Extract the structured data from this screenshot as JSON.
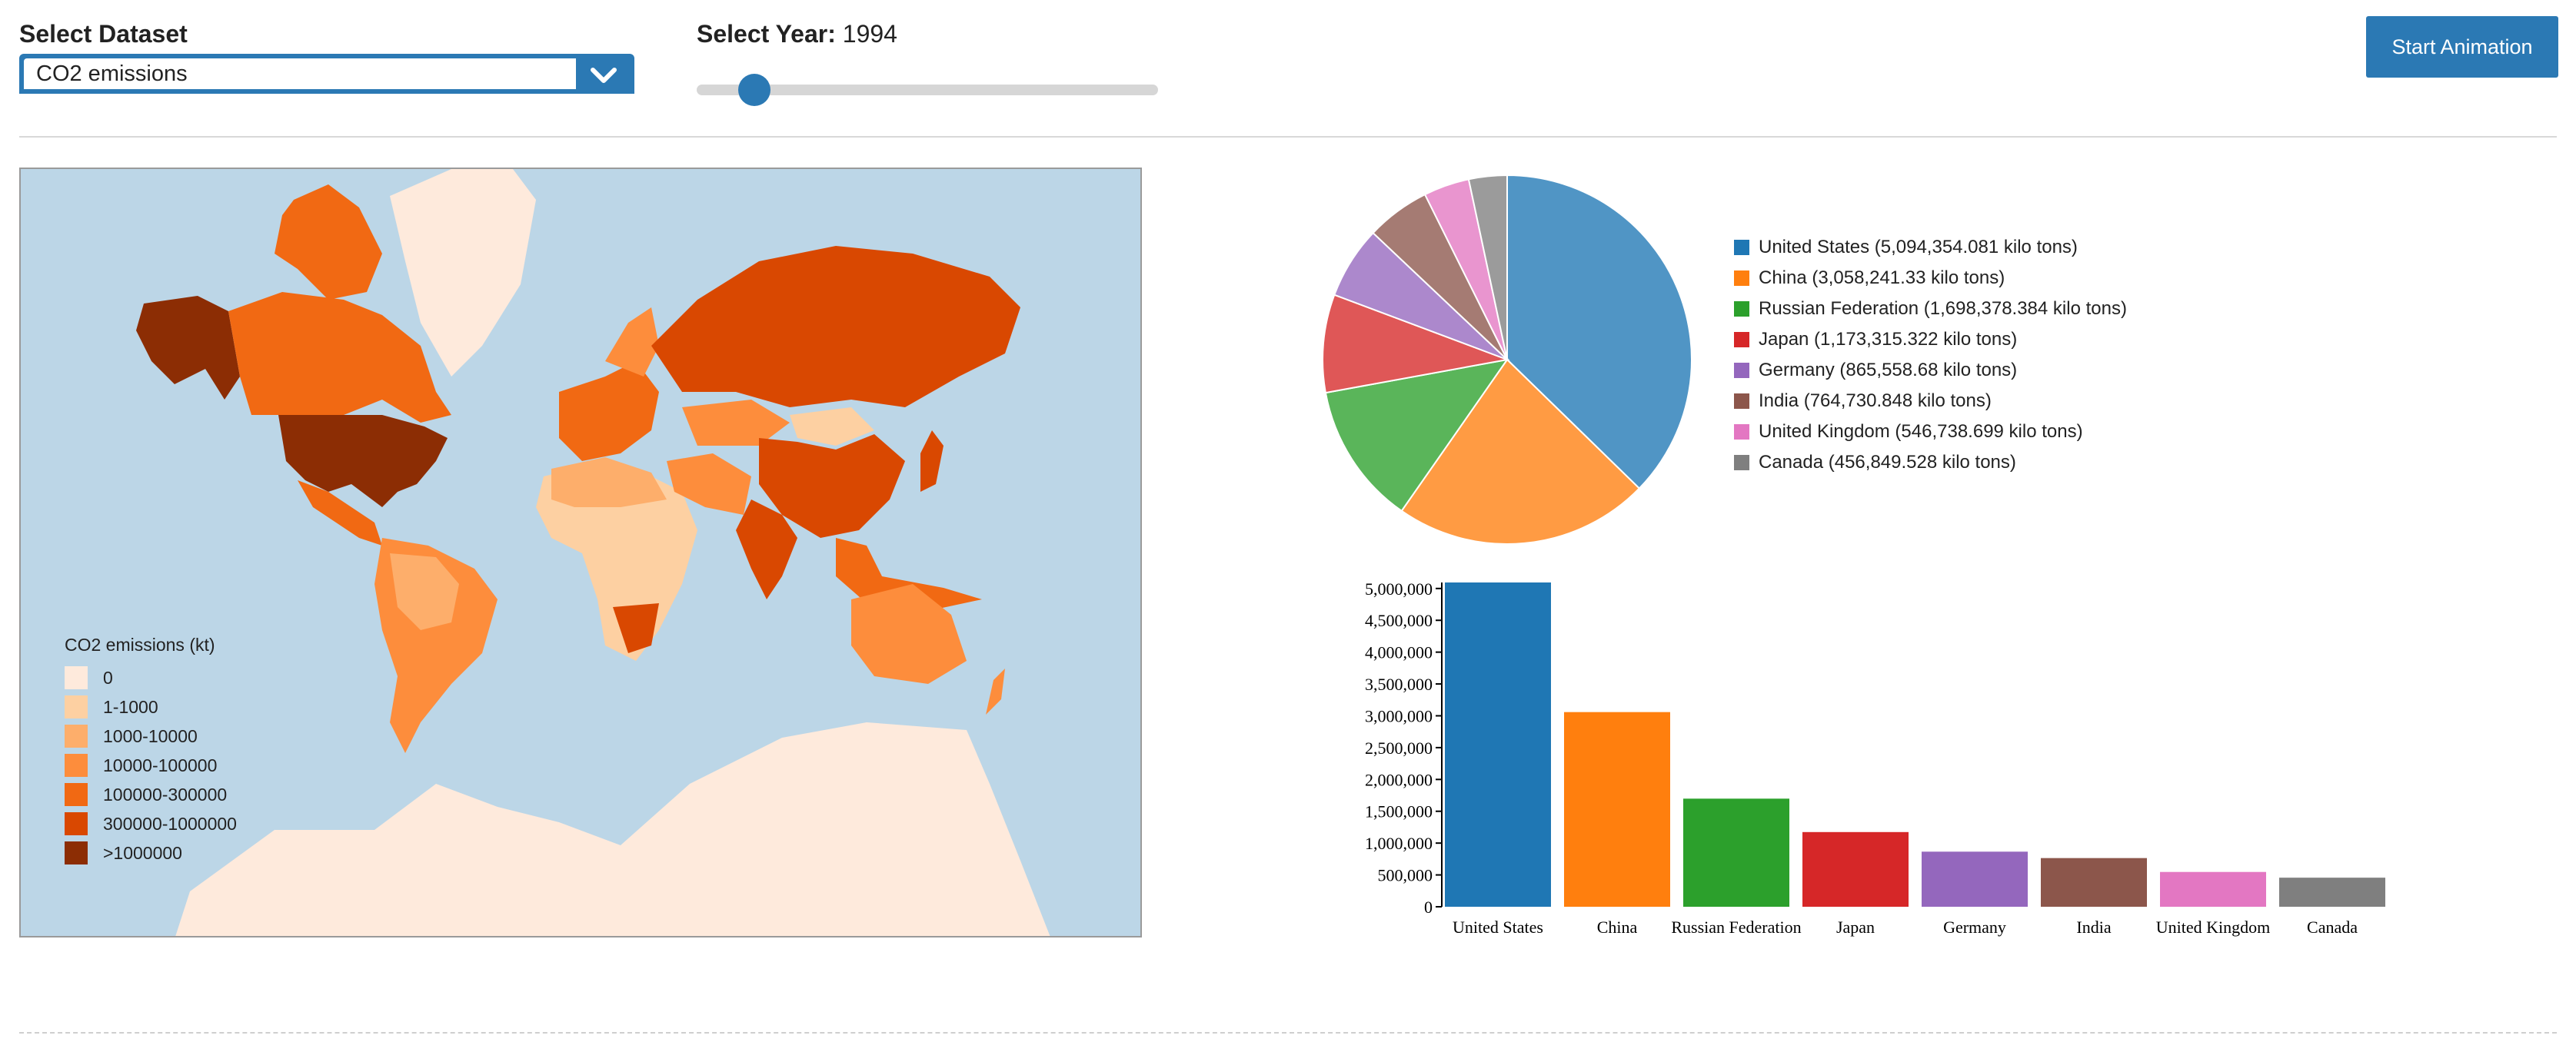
{
  "controls": {
    "dataset_label": "Select Dataset",
    "dataset_value": "CO2 emissions",
    "year_label": "Select Year:",
    "year_value": "1994",
    "year_fraction": 0.09,
    "start_button": "Start Animation"
  },
  "icons": {
    "dropdown": "chevron-down-icon"
  },
  "colors": {
    "accent": "#2b79b4",
    "ocean": "#bcd6e7",
    "land_zero": "#feeadc",
    "antarctica": "#feeadc"
  },
  "map_legend": {
    "title": "CO2 emissions (kt)",
    "items": [
      {
        "label": "0",
        "color": "#feeadc"
      },
      {
        "label": "1-1000",
        "color": "#fdd0a2"
      },
      {
        "label": "1000-10000",
        "color": "#fdae6b"
      },
      {
        "label": "10000-100000",
        "color": "#fd8d3c"
      },
      {
        "label": "100000-300000",
        "color": "#f16913"
      },
      {
        "label": "300000-1000000",
        "color": "#d94801"
      },
      {
        "label": ">1000000",
        "color": "#8c2d04"
      }
    ]
  },
  "chart_data": [
    {
      "type": "pie",
      "legend_position": "right",
      "slices": [
        {
          "name": "United States",
          "value": 5094354.081,
          "label": "United States (5,094,354.081 kilo tons)",
          "color": "#1f77b4"
        },
        {
          "name": "China",
          "value": 3058241.33,
          "label": "China (3,058,241.33 kilo tons)",
          "color": "#ff7f0e"
        },
        {
          "name": "Russian Federation",
          "value": 1698378.384,
          "label": "Russian Federation (1,698,378.384 kilo tons)",
          "color": "#2ca02c"
        },
        {
          "name": "Japan",
          "value": 1173315.322,
          "label": "Japan (1,173,315.322 kilo tons)",
          "color": "#d62728"
        },
        {
          "name": "Germany",
          "value": 865558.68,
          "label": "Germany (865,558.68 kilo tons)",
          "color": "#9467bd"
        },
        {
          "name": "India",
          "value": 764730.848,
          "label": "India (764,730.848 kilo tons)",
          "color": "#8c564b"
        },
        {
          "name": "United Kingdom",
          "value": 546738.699,
          "label": "United Kingdom (546,738.699 kilo tons)",
          "color": "#e377c2"
        },
        {
          "name": "Canada",
          "value": 456849.528,
          "label": "Canada (456,849.528 kilo tons)",
          "color": "#7f7f7f"
        }
      ]
    },
    {
      "type": "bar",
      "categories": [
        "United States",
        "China",
        "Russian Federation",
        "Japan",
        "Germany",
        "India",
        "United Kingdom",
        "Canada"
      ],
      "values": [
        5094354.081,
        3058241.33,
        1698378.384,
        1173315.322,
        865558.68,
        764730.848,
        546738.699,
        456849.528
      ],
      "colors": [
        "#1f77b4",
        "#ff7f0e",
        "#2ca02c",
        "#d62728",
        "#9467bd",
        "#8c564b",
        "#e377c2",
        "#7f7f7f"
      ],
      "yticks": [
        "0",
        "500,000",
        "1,000,000",
        "1,500,000",
        "2,000,000",
        "2,500,000",
        "3,000,000",
        "3,500,000",
        "4,000,000",
        "4,500,000",
        "5,000,000"
      ],
      "ylim": [
        0,
        5094354.081
      ],
      "grid": false
    }
  ]
}
